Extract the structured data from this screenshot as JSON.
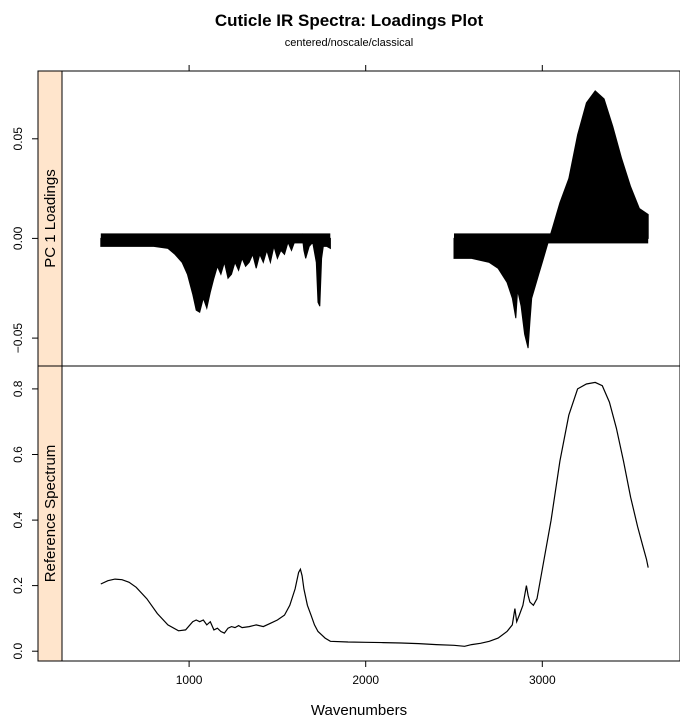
{
  "chart_data": {
    "type": "line",
    "title": "Cuticle IR Spectra: Loadings Plot",
    "subtitle": "centered/noscale/classical",
    "xlabel": "Wavenumbers",
    "xlim": [
      280,
      3780
    ],
    "x_ticks": [
      1000,
      2000,
      3000
    ],
    "colors": {
      "line": "#000000",
      "strip": "#ffe5cc",
      "frame": "#000000"
    },
    "panels": [
      {
        "name": "PC 1 Loadings",
        "ylim": [
          -0.064,
          0.084
        ],
        "y_ticks": [
          -0.05,
          0.0,
          0.05
        ],
        "y_tick_labels": [
          "−0.05",
          "0.00",
          "0.05"
        ],
        "style": "filled-spikes",
        "baseline": 0,
        "segments": [
          {
            "x": [
              500,
              600,
              700,
              800,
              880,
              920,
              960,
              990,
              1020,
              1040,
              1060,
              1080,
              1100,
              1120,
              1140,
              1160,
              1180,
              1200,
              1220,
              1240,
              1260,
              1280,
              1300,
              1320,
              1340,
              1360,
              1380,
              1400,
              1420,
              1440,
              1460,
              1480,
              1500,
              1520,
              1540,
              1560,
              1580,
              1600,
              1620,
              1630,
              1640,
              1650,
              1660,
              1680,
              1700,
              1720,
              1730,
              1740,
              1750,
              1760,
              1780,
              1800
            ],
            "y": [
              -0.004,
              -0.004,
              -0.004,
              -0.004,
              -0.005,
              -0.008,
              -0.012,
              -0.018,
              -0.028,
              -0.036,
              -0.037,
              -0.03,
              -0.035,
              -0.027,
              -0.02,
              -0.014,
              -0.018,
              -0.012,
              -0.02,
              -0.018,
              -0.012,
              -0.016,
              -0.01,
              -0.014,
              -0.012,
              -0.008,
              -0.015,
              -0.008,
              -0.012,
              -0.006,
              -0.012,
              -0.004,
              -0.01,
              -0.006,
              -0.008,
              -0.002,
              -0.006,
              -0.001,
              0.002,
              0.001,
              0.002,
              -0.006,
              -0.01,
              -0.004,
              -0.002,
              -0.012,
              -0.032,
              -0.034,
              -0.01,
              -0.004,
              -0.004,
              -0.005
            ]
          },
          {
            "x": [
              2500,
              2600,
              2700,
              2750,
              2800,
              2830,
              2850,
              2860,
              2880,
              2900,
              2920,
              2930,
              2940,
              2960,
              2980,
              3000,
              3020,
              3040,
              3060,
              3080,
              3100,
              3150,
              3200,
              3250,
              3300,
              3350,
              3400,
              3450,
              3500,
              3550,
              3600
            ],
            "y": [
              -0.01,
              -0.01,
              -0.012,
              -0.015,
              -0.022,
              -0.03,
              -0.04,
              -0.026,
              -0.034,
              -0.048,
              -0.055,
              -0.042,
              -0.03,
              -0.024,
              -0.018,
              -0.012,
              -0.006,
              0.0,
              0.006,
              0.012,
              0.018,
              0.03,
              0.052,
              0.068,
              0.074,
              0.07,
              0.056,
              0.04,
              0.026,
              0.015,
              0.012
            ]
          }
        ]
      },
      {
        "name": "Reference Spectrum",
        "ylim": [
          -0.03,
          0.87
        ],
        "y_ticks": [
          0.0,
          0.2,
          0.4,
          0.6,
          0.8
        ],
        "y_tick_labels": [
          "0.0",
          "0.2",
          "0.4",
          "0.6",
          "0.8"
        ],
        "style": "line",
        "x": [
          500,
          540,
          580,
          620,
          660,
          700,
          760,
          820,
          880,
          940,
          980,
          1020,
          1040,
          1060,
          1080,
          1100,
          1120,
          1140,
          1160,
          1180,
          1200,
          1220,
          1240,
          1260,
          1280,
          1300,
          1340,
          1380,
          1420,
          1460,
          1500,
          1540,
          1570,
          1600,
          1620,
          1630,
          1640,
          1650,
          1670,
          1690,
          1710,
          1730,
          1750,
          1770,
          1800,
          1900,
          2000,
          2100,
          2200,
          2300,
          2400,
          2500,
          2560,
          2600,
          2650,
          2700,
          2750,
          2800,
          2830,
          2845,
          2855,
          2870,
          2890,
          2910,
          2920,
          2930,
          2950,
          2970,
          3000,
          3050,
          3100,
          3150,
          3200,
          3250,
          3300,
          3340,
          3380,
          3420,
          3460,
          3500,
          3540,
          3570,
          3590,
          3600
        ],
        "y": [
          0.205,
          0.215,
          0.22,
          0.218,
          0.21,
          0.195,
          0.16,
          0.115,
          0.08,
          0.062,
          0.065,
          0.09,
          0.095,
          0.09,
          0.095,
          0.08,
          0.09,
          0.065,
          0.07,
          0.06,
          0.055,
          0.07,
          0.075,
          0.072,
          0.078,
          0.072,
          0.075,
          0.08,
          0.075,
          0.085,
          0.095,
          0.11,
          0.14,
          0.19,
          0.24,
          0.25,
          0.23,
          0.19,
          0.14,
          0.11,
          0.08,
          0.06,
          0.05,
          0.04,
          0.03,
          0.028,
          0.027,
          0.026,
          0.025,
          0.023,
          0.02,
          0.018,
          0.015,
          0.02,
          0.024,
          0.03,
          0.04,
          0.06,
          0.08,
          0.13,
          0.09,
          0.11,
          0.14,
          0.2,
          0.17,
          0.15,
          0.14,
          0.16,
          0.25,
          0.4,
          0.58,
          0.72,
          0.8,
          0.815,
          0.82,
          0.81,
          0.76,
          0.68,
          0.58,
          0.47,
          0.38,
          0.32,
          0.28,
          0.255
        ]
      }
    ]
  }
}
